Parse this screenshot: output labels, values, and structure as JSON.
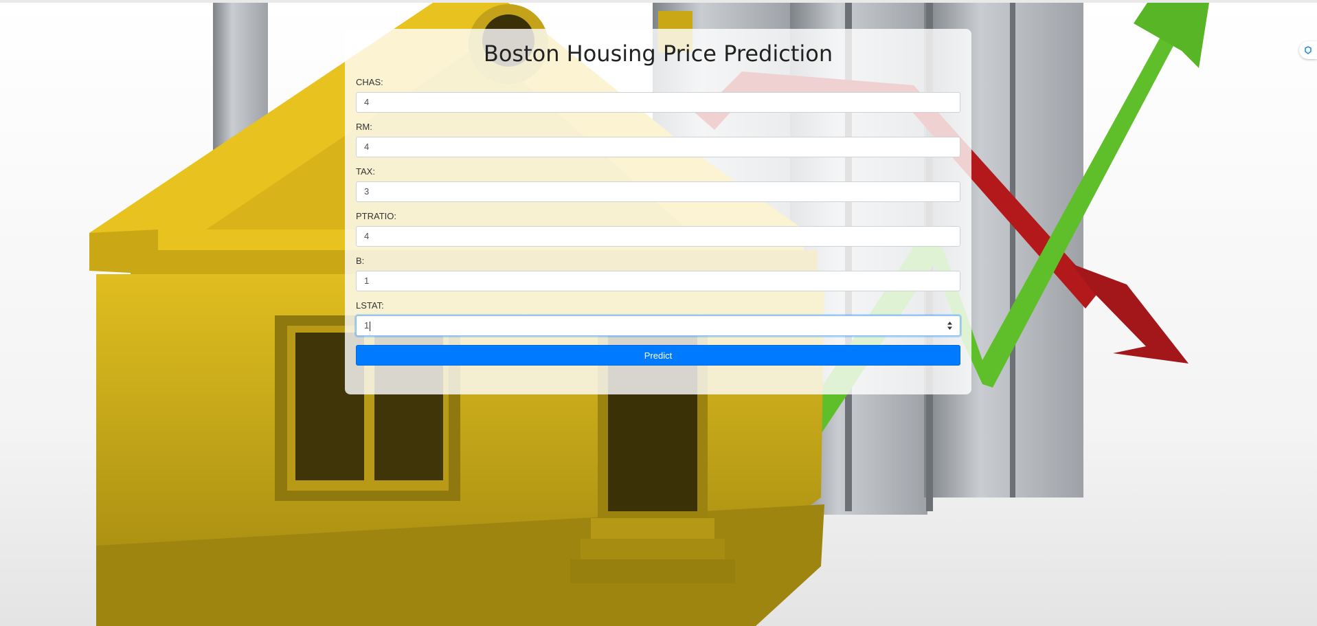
{
  "page": {
    "title": "Boston Housing Price Prediction"
  },
  "form": {
    "fields": [
      {
        "label": "CHAS:",
        "value": "4"
      },
      {
        "label": "RM:",
        "value": "4"
      },
      {
        "label": "TAX:",
        "value": "3"
      },
      {
        "label": "PTRATIO:",
        "value": "4"
      },
      {
        "label": "B:",
        "value": "1"
      },
      {
        "label": "LSTAT:",
        "value": "1"
      }
    ],
    "submit_label": "Predict"
  },
  "background": {
    "description_icon": "house-with-rising-and-falling-arrows-image"
  },
  "colors": {
    "accent": "#007bff",
    "house": "#d9b81e",
    "arrow_up": "#5fbf2a",
    "arrow_down": "#b3191b"
  }
}
